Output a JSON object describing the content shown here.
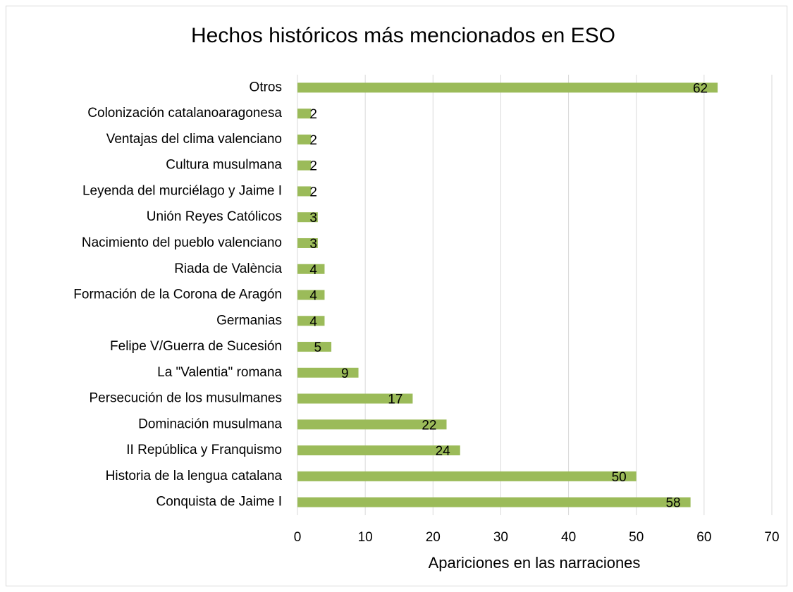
{
  "chart_data": {
    "type": "barh",
    "title": "Hechos históricos más mencionados en ESO",
    "categories": [
      "Otros",
      "Colonización catalanoaragonesa",
      "Ventajas del clima valenciano",
      "Cultura musulmana",
      "Leyenda del murciélago y Jaime I",
      "Unión Reyes Católicos",
      "Nacimiento del pueblo valenciano",
      "Riada de València",
      "Formación de la Corona de Aragón",
      "Germanias",
      "Felipe V/Guerra de Sucesión",
      "La \"Valentia\" romana",
      "Persecución de los musulmanes",
      "Dominación musulmana",
      "II República y Franquismo",
      "Historia de la lengua catalana",
      "Conquista de Jaime I"
    ],
    "values": [
      62,
      2,
      2,
      2,
      2,
      3,
      3,
      4,
      4,
      4,
      5,
      9,
      17,
      22,
      24,
      50,
      58
    ],
    "color": "#9bbb59",
    "xlabel": "Apariciones en las narraciones",
    "xlim": [
      0,
      70
    ],
    "xticks": [
      0,
      10,
      20,
      30,
      40,
      50,
      60,
      70
    ],
    "grid": true
  }
}
